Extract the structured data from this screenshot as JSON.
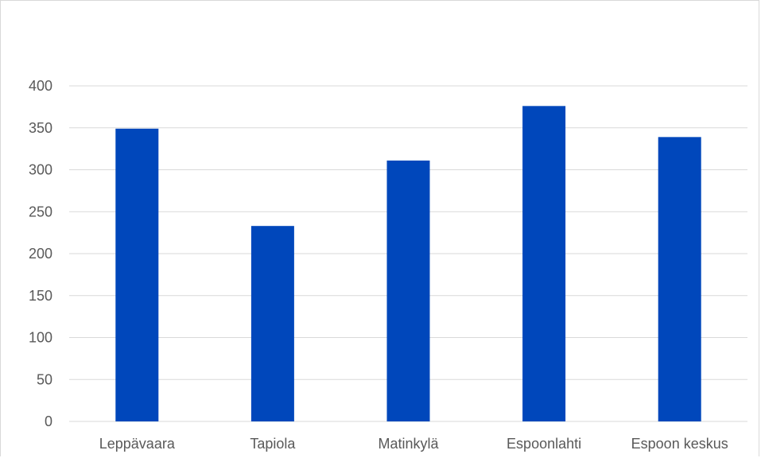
{
  "chart_data": {
    "type": "bar",
    "title": "",
    "xlabel": "",
    "ylabel": "",
    "categories": [
      "Leppävaara",
      "Tapiola",
      "Matinkylä",
      "Espoonlahti",
      "Espoon keskus"
    ],
    "values": [
      349,
      233,
      311,
      376,
      339
    ],
    "ylim": [
      0,
      400
    ],
    "yticks": [
      "0",
      "50",
      "100",
      "150",
      "200",
      "250",
      "300",
      "350",
      "400"
    ],
    "grid": true,
    "legend": "none",
    "colors": {
      "bar": "#0047bb",
      "grid": "#d9d9d9",
      "text": "#595959"
    }
  }
}
